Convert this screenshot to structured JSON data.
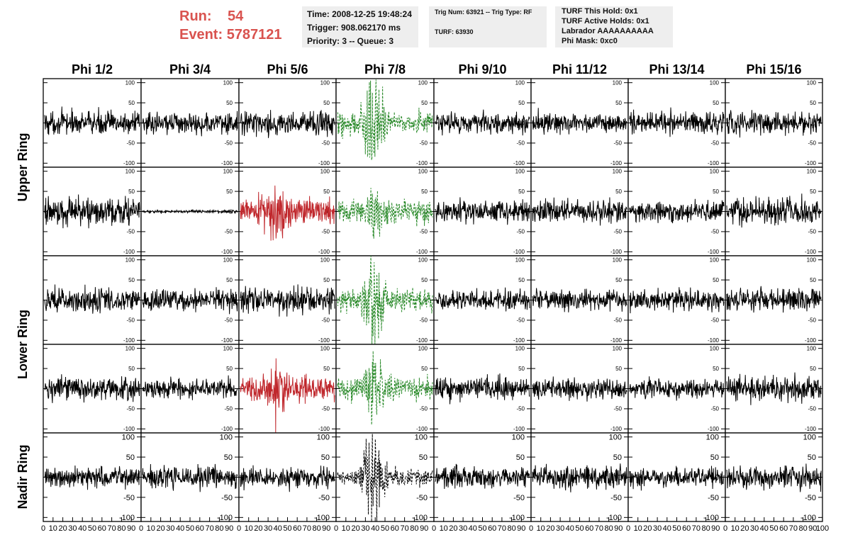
{
  "header": {
    "run_label": "Run:",
    "run_value": "54",
    "event_label": "Event:",
    "event_value": "5787121",
    "time": "Time: 2008-12-25 19:48:24",
    "trigger": "Trigger: 908.062170 ms",
    "priority": "Priority: 3 -- Queue: 3",
    "trig_num": "Trig Num: 63921 -- Trig Type: RF",
    "turf": "TURF: 63930",
    "turf_this_hold": "TURF This Hold: 0x1",
    "turf_active_holds": "TURF Active Holds: 0x1",
    "labrador": "Labrador AAAAAAAAAA",
    "phi_mask": "Phi Mask: 0xc0"
  },
  "chart_data": {
    "type": "line",
    "columns": [
      "Phi 1/2",
      "Phi 3/4",
      "Phi 5/6",
      "Phi 7/8",
      "Phi 9/10",
      "Phi 11/12",
      "Phi 13/14",
      "Phi 15/16"
    ],
    "row_labels": [
      "Upper Ring",
      "Lower Ring",
      "Nadir Ring"
    ],
    "ylim": [
      -110,
      110
    ],
    "yticks": [
      -100,
      -50,
      0,
      50,
      100
    ],
    "xlim": [
      0,
      100
    ],
    "xticks": [
      0,
      10,
      20,
      30,
      40,
      50,
      60,
      70,
      80,
      90,
      100
    ],
    "colors": {
      "normal": "#000000",
      "red": "#c0282d",
      "green": "#2a8a2a"
    },
    "panels": [
      {
        "row": 0,
        "col": 0,
        "amp": 14,
        "color": "normal",
        "style": "solid",
        "burst": 0
      },
      {
        "row": 0,
        "col": 1,
        "amp": 13,
        "color": "normal",
        "style": "solid",
        "burst": 0
      },
      {
        "row": 0,
        "col": 2,
        "amp": 14,
        "color": "normal",
        "style": "solid",
        "burst": 0
      },
      {
        "row": 0,
        "col": 3,
        "amp": 14,
        "color": "green",
        "style": "dashed",
        "burst": 3.2
      },
      {
        "row": 0,
        "col": 4,
        "amp": 13,
        "color": "normal",
        "style": "solid",
        "burst": 0
      },
      {
        "row": 0,
        "col": 5,
        "amp": 12,
        "color": "normal",
        "style": "solid",
        "burst": 0
      },
      {
        "row": 0,
        "col": 6,
        "amp": 14,
        "color": "normal",
        "style": "solid",
        "burst": 0
      },
      {
        "row": 0,
        "col": 7,
        "amp": 14,
        "color": "normal",
        "style": "solid",
        "burst": 0
      },
      {
        "row": 1,
        "col": 0,
        "amp": 17,
        "color": "normal",
        "style": "solid",
        "burst": 0
      },
      {
        "row": 1,
        "col": 1,
        "amp": 2,
        "color": "normal",
        "style": "solid",
        "burst": 0
      },
      {
        "row": 1,
        "col": 2,
        "amp": 16,
        "color": "red",
        "style": "solid",
        "burst": 1.6
      },
      {
        "row": 1,
        "col": 3,
        "amp": 14,
        "color": "green",
        "style": "dashed",
        "burst": 1.5
      },
      {
        "row": 1,
        "col": 4,
        "amp": 14,
        "color": "normal",
        "style": "solid",
        "burst": 0
      },
      {
        "row": 1,
        "col": 5,
        "amp": 14,
        "color": "normal",
        "style": "solid",
        "burst": 0
      },
      {
        "row": 1,
        "col": 6,
        "amp": 12,
        "color": "normal",
        "style": "solid",
        "burst": 0
      },
      {
        "row": 1,
        "col": 7,
        "amp": 16,
        "color": "normal",
        "style": "solid",
        "burst": 0
      },
      {
        "row": 2,
        "col": 0,
        "amp": 15,
        "color": "normal",
        "style": "solid",
        "burst": 0
      },
      {
        "row": 2,
        "col": 1,
        "amp": 13,
        "color": "normal",
        "style": "solid",
        "burst": 0
      },
      {
        "row": 2,
        "col": 2,
        "amp": 15,
        "color": "normal",
        "style": "solid",
        "burst": 0
      },
      {
        "row": 2,
        "col": 3,
        "amp": 14,
        "color": "green",
        "style": "dashed",
        "burst": 3.0
      },
      {
        "row": 2,
        "col": 4,
        "amp": 12,
        "color": "normal",
        "style": "solid",
        "burst": 0
      },
      {
        "row": 2,
        "col": 5,
        "amp": 13,
        "color": "normal",
        "style": "solid",
        "burst": 0
      },
      {
        "row": 2,
        "col": 6,
        "amp": 13,
        "color": "normal",
        "style": "solid",
        "burst": 0
      },
      {
        "row": 2,
        "col": 7,
        "amp": 14,
        "color": "normal",
        "style": "solid",
        "burst": 0
      },
      {
        "row": 3,
        "col": 0,
        "amp": 14,
        "color": "normal",
        "style": "solid",
        "burst": 0
      },
      {
        "row": 3,
        "col": 1,
        "amp": 12,
        "color": "normal",
        "style": "solid",
        "burst": 0
      },
      {
        "row": 3,
        "col": 2,
        "amp": 15,
        "color": "red",
        "style": "solid",
        "burst": 1.4
      },
      {
        "row": 3,
        "col": 3,
        "amp": 14,
        "color": "green",
        "style": "dashed",
        "burst": 2.2
      },
      {
        "row": 3,
        "col": 4,
        "amp": 13,
        "color": "normal",
        "style": "solid",
        "burst": 0
      },
      {
        "row": 3,
        "col": 5,
        "amp": 12,
        "color": "normal",
        "style": "solid",
        "burst": 0
      },
      {
        "row": 3,
        "col": 6,
        "amp": 11,
        "color": "normal",
        "style": "solid",
        "burst": 0
      },
      {
        "row": 3,
        "col": 7,
        "amp": 15,
        "color": "normal",
        "style": "solid",
        "burst": 0
      },
      {
        "row": 4,
        "col": 0,
        "amp": 13,
        "color": "normal",
        "style": "solid",
        "burst": 0
      },
      {
        "row": 4,
        "col": 1,
        "amp": 14,
        "color": "normal",
        "style": "solid",
        "burst": 0
      },
      {
        "row": 4,
        "col": 2,
        "amp": 12,
        "color": "normal",
        "style": "solid",
        "burst": 0
      },
      {
        "row": 4,
        "col": 3,
        "amp": 10,
        "color": "normal",
        "style": "dashed",
        "burst": 5.5
      },
      {
        "row": 4,
        "col": 4,
        "amp": 13,
        "color": "normal",
        "style": "solid",
        "burst": 0
      },
      {
        "row": 4,
        "col": 5,
        "amp": 14,
        "color": "normal",
        "style": "solid",
        "burst": 0
      },
      {
        "row": 4,
        "col": 6,
        "amp": 13,
        "color": "normal",
        "style": "solid",
        "burst": 0
      },
      {
        "row": 4,
        "col": 7,
        "amp": 14,
        "color": "normal",
        "style": "solid",
        "burst": 0
      }
    ]
  }
}
